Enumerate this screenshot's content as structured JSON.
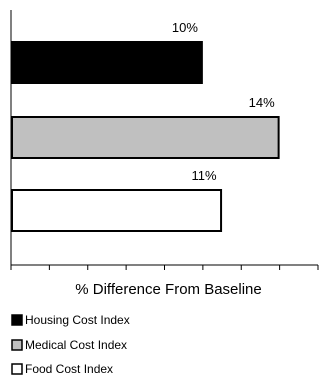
{
  "chart_data": {
    "type": "bar",
    "orientation": "horizontal",
    "xlabel": "% Difference From Baseline",
    "xlim": [
      0,
      16
    ],
    "xtick_step": 2,
    "grid": false,
    "legend_position": "bottom",
    "categories": [
      "Housing Cost Index",
      "Medical Cost Index",
      "Food Cost Index"
    ],
    "series": [
      {
        "name": "Housing Cost Index",
        "value": 10,
        "label": "10%",
        "color": "#000000"
      },
      {
        "name": "Medical Cost Index",
        "value": 14,
        "label": "14%",
        "color": "#c0c0c0"
      },
      {
        "name": "Food Cost Index",
        "value": 11,
        "label": "11%",
        "color": "#ffffff"
      }
    ]
  }
}
